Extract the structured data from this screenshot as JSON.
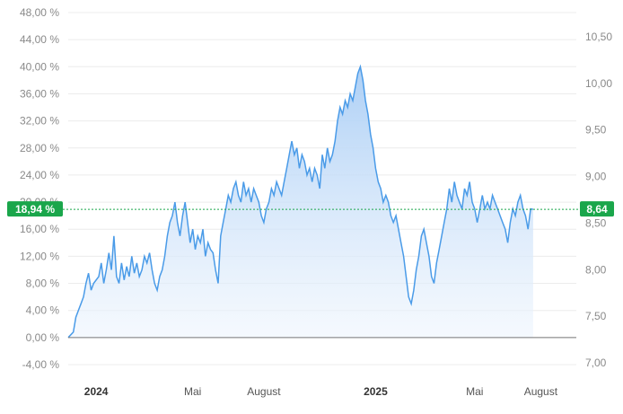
{
  "chart_data": {
    "type": "area",
    "left_axis": {
      "ticks": [
        "48,00 %",
        "44,00 %",
        "40,00 %",
        "36,00 %",
        "32,00 %",
        "28,00 %",
        "24,00 %",
        "20,00 %",
        "16,00 %",
        "12,00 %",
        "8,00 %",
        "4,00 %",
        "0,00 %",
        "-4,00 %"
      ],
      "ylim": [
        -4,
        48
      ]
    },
    "right_axis": {
      "ticks": [
        "10,50",
        "10,00",
        "9,50",
        "9,00",
        "8,50",
        "8,00",
        "7,50",
        "7,00"
      ],
      "ylim": [
        7.0,
        10.5
      ]
    },
    "x_ticks": [
      {
        "label": "2024",
        "bold": true,
        "pos": 0.055
      },
      {
        "label": "Mai",
        "bold": false,
        "pos": 0.245
      },
      {
        "label": "August",
        "bold": false,
        "pos": 0.385
      },
      {
        "label": "2025",
        "bold": true,
        "pos": 0.605
      },
      {
        "label": "Mai",
        "bold": false,
        "pos": 0.8
      },
      {
        "label": "August",
        "bold": false,
        "pos": 0.93
      }
    ],
    "current_left_label": "18,94 %",
    "current_right_label": "8,64",
    "current_value_pct": 18.94,
    "colors": {
      "line": "#4a9be8",
      "fill_top": "#a9cdf5",
      "fill_bottom": "#eef5fd",
      "badge": "#1aa64b",
      "grid": "#e6e6e6"
    },
    "series": [
      {
        "values": [
          [
            0.0,
            0
          ],
          [
            0.01,
            0.8
          ],
          [
            0.015,
            3
          ],
          [
            0.02,
            4
          ],
          [
            0.025,
            5
          ],
          [
            0.03,
            6
          ],
          [
            0.035,
            8
          ],
          [
            0.04,
            9.5
          ],
          [
            0.045,
            7
          ],
          [
            0.05,
            8
          ],
          [
            0.06,
            9
          ],
          [
            0.065,
            11
          ],
          [
            0.07,
            8
          ],
          [
            0.075,
            10
          ],
          [
            0.08,
            12.5
          ],
          [
            0.085,
            10
          ],
          [
            0.09,
            15
          ],
          [
            0.095,
            9
          ],
          [
            0.1,
            8
          ],
          [
            0.105,
            11
          ],
          [
            0.11,
            8.5
          ],
          [
            0.115,
            10.5
          ],
          [
            0.12,
            9
          ],
          [
            0.125,
            12
          ],
          [
            0.13,
            9.5
          ],
          [
            0.135,
            11
          ],
          [
            0.14,
            9
          ],
          [
            0.145,
            10
          ],
          [
            0.15,
            12
          ],
          [
            0.155,
            11
          ],
          [
            0.16,
            12.5
          ],
          [
            0.165,
            10
          ],
          [
            0.17,
            8
          ],
          [
            0.175,
            7
          ],
          [
            0.18,
            9
          ],
          [
            0.185,
            10
          ],
          [
            0.19,
            12
          ],
          [
            0.195,
            15
          ],
          [
            0.2,
            17
          ],
          [
            0.205,
            18
          ],
          [
            0.21,
            20
          ],
          [
            0.215,
            17
          ],
          [
            0.22,
            15
          ],
          [
            0.225,
            18
          ],
          [
            0.23,
            20
          ],
          [
            0.235,
            17
          ],
          [
            0.24,
            14
          ],
          [
            0.245,
            16
          ],
          [
            0.25,
            13
          ],
          [
            0.255,
            15
          ],
          [
            0.26,
            14
          ],
          [
            0.265,
            16
          ],
          [
            0.27,
            12
          ],
          [
            0.275,
            14
          ],
          [
            0.28,
            13
          ],
          [
            0.285,
            12.5
          ],
          [
            0.29,
            10
          ],
          [
            0.295,
            8
          ],
          [
            0.3,
            15
          ],
          [
            0.305,
            17
          ],
          [
            0.31,
            19
          ],
          [
            0.315,
            21
          ],
          [
            0.32,
            20
          ],
          [
            0.325,
            22
          ],
          [
            0.33,
            23
          ],
          [
            0.335,
            21
          ],
          [
            0.34,
            20
          ],
          [
            0.345,
            23
          ],
          [
            0.35,
            21
          ],
          [
            0.355,
            22
          ],
          [
            0.36,
            20
          ],
          [
            0.365,
            22
          ],
          [
            0.37,
            21
          ],
          [
            0.375,
            20
          ],
          [
            0.38,
            18
          ],
          [
            0.385,
            17
          ],
          [
            0.39,
            19
          ],
          [
            0.395,
            20
          ],
          [
            0.4,
            22
          ],
          [
            0.405,
            21
          ],
          [
            0.41,
            23
          ],
          [
            0.415,
            22
          ],
          [
            0.42,
            21
          ],
          [
            0.425,
            23
          ],
          [
            0.43,
            25
          ],
          [
            0.435,
            27
          ],
          [
            0.44,
            29
          ],
          [
            0.445,
            27
          ],
          [
            0.45,
            28
          ],
          [
            0.455,
            25
          ],
          [
            0.46,
            27
          ],
          [
            0.465,
            26
          ],
          [
            0.47,
            24
          ],
          [
            0.475,
            25
          ],
          [
            0.48,
            23
          ],
          [
            0.485,
            25
          ],
          [
            0.49,
            24
          ],
          [
            0.495,
            22
          ],
          [
            0.5,
            27
          ],
          [
            0.505,
            25
          ],
          [
            0.51,
            28
          ],
          [
            0.515,
            26
          ],
          [
            0.52,
            27
          ],
          [
            0.525,
            29
          ],
          [
            0.53,
            32
          ],
          [
            0.535,
            34
          ],
          [
            0.54,
            33
          ],
          [
            0.545,
            35
          ],
          [
            0.55,
            34
          ],
          [
            0.555,
            36
          ],
          [
            0.56,
            35
          ],
          [
            0.565,
            37
          ],
          [
            0.57,
            39
          ],
          [
            0.575,
            40
          ],
          [
            0.58,
            38
          ],
          [
            0.585,
            35
          ],
          [
            0.59,
            33
          ],
          [
            0.595,
            30
          ],
          [
            0.6,
            28
          ],
          [
            0.605,
            25
          ],
          [
            0.61,
            23
          ],
          [
            0.615,
            22
          ],
          [
            0.62,
            20
          ],
          [
            0.625,
            21
          ],
          [
            0.63,
            20
          ],
          [
            0.635,
            18
          ],
          [
            0.64,
            17
          ],
          [
            0.645,
            18
          ],
          [
            0.65,
            16
          ],
          [
            0.655,
            14
          ],
          [
            0.66,
            12
          ],
          [
            0.665,
            9
          ],
          [
            0.67,
            6
          ],
          [
            0.675,
            5
          ],
          [
            0.68,
            7
          ],
          [
            0.685,
            10
          ],
          [
            0.69,
            12
          ],
          [
            0.695,
            15
          ],
          [
            0.7,
            16
          ],
          [
            0.705,
            14
          ],
          [
            0.71,
            12
          ],
          [
            0.715,
            9
          ],
          [
            0.72,
            8
          ],
          [
            0.725,
            11
          ],
          [
            0.73,
            13
          ],
          [
            0.735,
            15
          ],
          [
            0.74,
            17
          ],
          [
            0.745,
            19
          ],
          [
            0.75,
            22
          ],
          [
            0.755,
            20
          ],
          [
            0.76,
            23
          ],
          [
            0.765,
            21
          ],
          [
            0.77,
            20
          ],
          [
            0.775,
            19
          ],
          [
            0.78,
            22
          ],
          [
            0.785,
            21
          ],
          [
            0.79,
            23
          ],
          [
            0.795,
            20
          ],
          [
            0.8,
            19
          ],
          [
            0.805,
            17
          ],
          [
            0.81,
            19
          ],
          [
            0.815,
            21
          ],
          [
            0.82,
            19
          ],
          [
            0.825,
            20
          ],
          [
            0.83,
            19
          ],
          [
            0.835,
            21
          ],
          [
            0.84,
            20
          ],
          [
            0.845,
            19
          ],
          [
            0.85,
            18
          ],
          [
            0.855,
            17
          ],
          [
            0.86,
            16
          ],
          [
            0.865,
            14
          ],
          [
            0.87,
            17
          ],
          [
            0.875,
            19
          ],
          [
            0.88,
            18
          ],
          [
            0.885,
            20
          ],
          [
            0.89,
            21
          ],
          [
            0.895,
            19
          ],
          [
            0.9,
            18
          ],
          [
            0.905,
            16
          ],
          [
            0.91,
            19
          ],
          [
            0.915,
            18.94
          ]
        ]
      }
    ]
  }
}
